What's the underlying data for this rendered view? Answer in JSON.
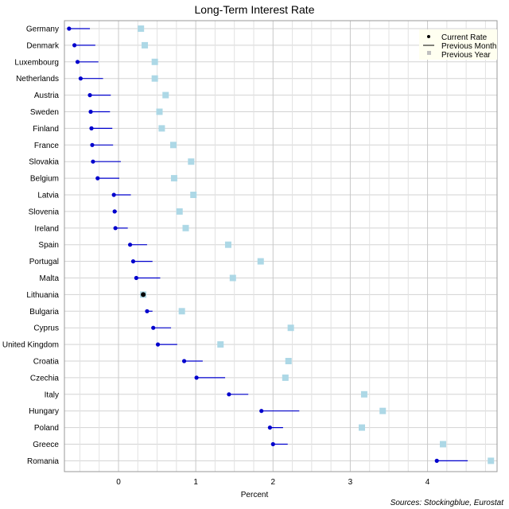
{
  "chart_data": {
    "type": "scatter",
    "title": "Long-Term Interest Rate",
    "xlabel": "Percent",
    "ylabel": "",
    "source": "Sources: Stockingblue, Eurostat",
    "xlim": [
      -0.7,
      4.9
    ],
    "xticks": [
      0,
      1,
      2,
      3,
      4
    ],
    "grid": true,
    "legend_position": "top-right",
    "legend": [
      "Current Rate",
      "Previous Month",
      "Previous Year"
    ],
    "colors": {
      "current": "#0000cd",
      "previous_month": "#0000cd",
      "previous_year": "#add8e6",
      "grid": "#d3d3d3",
      "highlight": "#000000"
    },
    "categories": [
      "Germany",
      "Denmark",
      "Luxembourg",
      "Netherlands",
      "Austria",
      "Sweden",
      "Finland",
      "France",
      "Slovakia",
      "Belgium",
      "Latvia",
      "Slovenia",
      "Ireland",
      "Spain",
      "Portugal",
      "Malta",
      "Lithuania",
      "Bulgaria",
      "Cyprus",
      "United Kingdom",
      "Croatia",
      "Czechia",
      "Italy",
      "Hungary",
      "Poland",
      "Greece",
      "Romania"
    ],
    "current": [
      -0.64,
      -0.57,
      -0.53,
      -0.49,
      -0.37,
      -0.36,
      -0.35,
      -0.34,
      -0.33,
      -0.27,
      -0.06,
      -0.05,
      -0.04,
      0.15,
      0.19,
      0.23,
      0.32,
      0.37,
      0.45,
      0.51,
      0.85,
      1.01,
      1.43,
      1.85,
      1.96,
      2.0,
      4.12
    ],
    "previous_month": [
      -0.37,
      -0.3,
      -0.26,
      -0.2,
      -0.1,
      -0.11,
      -0.08,
      -0.07,
      0.03,
      0.01,
      0.16,
      -0.02,
      0.12,
      0.37,
      0.44,
      0.54,
      0.32,
      0.44,
      0.68,
      0.76,
      1.09,
      1.38,
      1.68,
      2.34,
      2.13,
      2.19,
      4.52
    ],
    "previous_year": [
      0.29,
      0.34,
      0.47,
      0.47,
      0.61,
      0.53,
      0.56,
      0.71,
      0.94,
      0.72,
      0.97,
      0.79,
      0.87,
      1.42,
      1.84,
      1.48,
      0.32,
      0.82,
      2.23,
      1.32,
      2.2,
      2.16,
      3.18,
      3.42,
      3.15,
      4.2,
      4.82
    ]
  }
}
